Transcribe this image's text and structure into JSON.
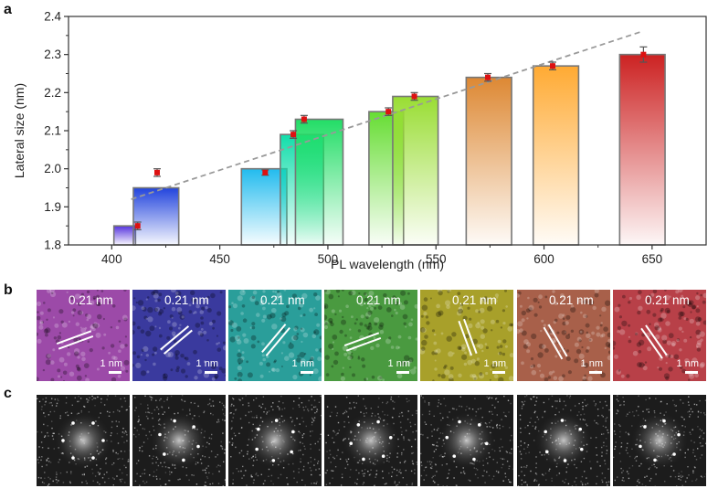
{
  "panels": {
    "a": "a",
    "b": "b",
    "c": "c"
  },
  "chart_data": {
    "type": "bar",
    "xlabel": "PL wavelength (nm)",
    "ylabel": "Lateral size (nm)",
    "xlim": [
      380,
      675
    ],
    "ylim": [
      1.8,
      2.4
    ],
    "xticks": [
      400,
      450,
      500,
      550,
      600,
      650
    ],
    "yticks": [
      1.8,
      1.9,
      2.0,
      2.1,
      2.2,
      2.3,
      2.4
    ],
    "bars": [
      {
        "x_start": 401,
        "x_end": 411,
        "value": 1.85,
        "color": "#5533dd"
      },
      {
        "x_start": 410,
        "x_end": 431,
        "value": 1.95,
        "color": "#2244dd"
      },
      {
        "x_start": 460,
        "x_end": 481,
        "value": 2.0,
        "color": "#22bbee"
      },
      {
        "x_start": 478,
        "x_end": 498,
        "value": 2.09,
        "color": "#11ddaa"
      },
      {
        "x_start": 485,
        "x_end": 507,
        "value": 2.13,
        "color": "#22dd66"
      },
      {
        "x_start": 519,
        "x_end": 535,
        "value": 2.15,
        "color": "#66dd33"
      },
      {
        "x_start": 530,
        "x_end": 551,
        "value": 2.19,
        "color": "#99dd33"
      },
      {
        "x_start": 564,
        "x_end": 585,
        "value": 2.24,
        "color": "#dd8833"
      },
      {
        "x_start": 595,
        "x_end": 616,
        "value": 2.27,
        "color": "#ffaa33"
      },
      {
        "x_start": 635,
        "x_end": 656,
        "value": 2.3,
        "color": "#cc2222"
      }
    ],
    "points": [
      {
        "x": 412,
        "y": 1.85,
        "err": 0.01
      },
      {
        "x": 421,
        "y": 1.99,
        "err": 0.01
      },
      {
        "x": 471,
        "y": 1.99,
        "err": 0.007
      },
      {
        "x": 484,
        "y": 2.09,
        "err": 0.01
      },
      {
        "x": 489,
        "y": 2.13,
        "err": 0.01
      },
      {
        "x": 528,
        "y": 2.15,
        "err": 0.01
      },
      {
        "x": 540,
        "y": 2.19,
        "err": 0.01
      },
      {
        "x": 574,
        "y": 2.24,
        "err": 0.01
      },
      {
        "x": 604,
        "y": 2.27,
        "err": 0.01
      },
      {
        "x": 646,
        "y": 2.3,
        "err": 0.02
      }
    ],
    "trend_line": {
      "x": [
        409,
        645
      ],
      "y": [
        1.92,
        2.36
      ],
      "style": "dashed",
      "color": "#999999"
    }
  },
  "hrtem": {
    "tiles": [
      {
        "label": "0.21 nm",
        "scale": "1 nm",
        "color": "#9c4aa8"
      },
      {
        "label": "0.21 nm",
        "scale": "1 nm",
        "color": "#3a3a9e"
      },
      {
        "label": "0.21 nm",
        "scale": "1 nm",
        "color": "#2a9e9a"
      },
      {
        "label": "0.21 nm",
        "scale": "1 nm",
        "color": "#4a9a40"
      },
      {
        "label": "0.21 nm",
        "scale": "1 nm",
        "color": "#a8a02a"
      },
      {
        "label": "0.21 nm",
        "scale": "1 nm",
        "color": "#a8604a"
      },
      {
        "label": "0.21 nm",
        "scale": "1 nm",
        "color": "#b84048"
      }
    ]
  },
  "fft": {
    "count": 7
  }
}
